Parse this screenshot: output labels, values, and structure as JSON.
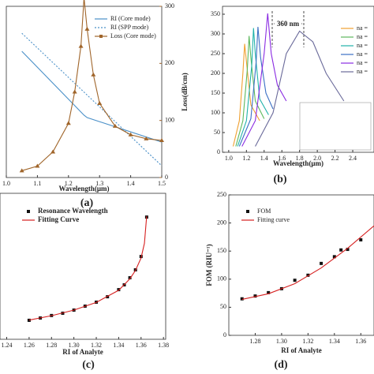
{
  "chart_data": [
    {
      "type": "line",
      "caption": "(a)",
      "xlabel": "Wavelength(μm)",
      "y2label": "Loss(dB/cm)",
      "xlim": [
        1.0,
        1.5
      ],
      "xticks": [
        {
          "value": 1.0,
          "label": "1.0"
        },
        1.1,
        1.2,
        1.3,
        1.4,
        {
          "value": 1.5,
          "label": "1.5"
        }
      ],
      "ylim": [
        1.4,
        1.47
      ],
      "y2lim": [
        0,
        300
      ],
      "y2ticks": [
        0,
        100,
        200,
        300
      ],
      "legend": "upper right",
      "series": [
        {
          "name": "RI (Core mode)",
          "color": "#4a90c8",
          "dash": false,
          "marker": null,
          "x": [
            1.05,
            1.25,
            1.26,
            1.5
          ],
          "values": [
            1.4516,
            1.4255,
            1.4245,
            1.4145
          ]
        },
        {
          "name": "RI (SPP mode)",
          "color": "#4a90c8",
          "dash": true,
          "marker": null,
          "x": [
            1.05,
            1.5
          ],
          "values": [
            1.459,
            1.4048
          ]
        },
        {
          "name": "Loss (Core mode)",
          "color": "#a0652a",
          "dash": false,
          "marker": "triangle",
          "axis": "y2",
          "x": [
            1.05,
            1.1,
            1.15,
            1.2,
            1.22,
            1.24,
            1.25,
            1.26,
            1.28,
            1.3,
            1.35,
            1.4,
            1.45,
            1.5
          ],
          "values": [
            12,
            20,
            45,
            95,
            150,
            230,
            315,
            260,
            180,
            130,
            90,
            75,
            68,
            65
          ]
        }
      ]
    },
    {
      "type": "line",
      "caption": "(b)",
      "xlabel": "Wavelength(μm)",
      "annotation": "360 nm",
      "xlim": [
        0.93,
        2.64
      ],
      "xticks": [
        {
          "value": 1.0,
          "label": "1.0"
        },
        1.2,
        1.4,
        1.6,
        1.8,
        {
          "value": 2.0,
          "label": "2.0"
        },
        2.2,
        2.4
      ],
      "ylim": [
        0,
        370
      ],
      "yticks": [
        0,
        50,
        100,
        150,
        200,
        250,
        300,
        350
      ],
      "legend": "right",
      "series": [
        {
          "name": "na =",
          "color": "#f0a030",
          "dash": false,
          "marker": null,
          "x": [
            1.05,
            1.12,
            1.16,
            1.18,
            1.2,
            1.25,
            1.35
          ],
          "values": [
            15,
            80,
            200,
            275,
            230,
            120,
            80
          ]
        },
        {
          "name": "na =",
          "color": "#5cb85c",
          "dash": false,
          "marker": null,
          "x": [
            1.08,
            1.16,
            1.21,
            1.23,
            1.25,
            1.3,
            1.4
          ],
          "values": [
            15,
            80,
            210,
            295,
            240,
            130,
            85
          ]
        },
        {
          "name": "na =",
          "color": "#20b2aa",
          "dash": false,
          "marker": null,
          "x": [
            1.1,
            1.2,
            1.26,
            1.28,
            1.3,
            1.35,
            1.45
          ],
          "values": [
            15,
            80,
            220,
            315,
            250,
            135,
            95
          ]
        },
        {
          "name": "na =",
          "color": "#3a6fc4",
          "dash": false,
          "marker": null,
          "x": [
            1.12,
            1.25,
            1.31,
            1.33,
            1.36,
            1.42,
            1.5
          ],
          "values": [
            15,
            85,
            230,
            318,
            240,
            150,
            110
          ]
        },
        {
          "name": "na =",
          "color": "#8a2be2",
          "dash": false,
          "marker": null,
          "x": [
            1.15,
            1.3,
            1.4,
            1.44,
            1.48,
            1.55,
            1.65
          ],
          "values": [
            15,
            80,
            250,
            352,
            250,
            170,
            130
          ]
        },
        {
          "name": "na =",
          "color": "#6a6a9a",
          "dash": false,
          "marker": null,
          "x": [
            1.3,
            1.5,
            1.65,
            1.8,
            1.95,
            2.1,
            2.3
          ],
          "values": [
            15,
            100,
            250,
            307,
            280,
            200,
            130
          ]
        }
      ]
    },
    {
      "type": "line",
      "caption": "(c)",
      "xlabel": "RI of Analyte",
      "xlim": [
        1.234,
        1.382
      ],
      "xticks": [
        1.24,
        1.26,
        1.28,
        {
          "value": 1.3,
          "label": "1.30"
        },
        1.32,
        1.34,
        1.36,
        1.38
      ],
      "ylim": [
        1.3,
        2.0
      ],
      "legend": "upper left",
      "series": [
        {
          "name": "Resonance Wavelength",
          "color": "#111111",
          "dash": false,
          "marker": "square",
          "line": false,
          "x": [
            1.26,
            1.27,
            1.28,
            1.29,
            1.3,
            1.31,
            1.32,
            1.33,
            1.34,
            1.345,
            1.35,
            1.355,
            1.36,
            1.365
          ],
          "values": [
            1.391,
            1.402,
            1.414,
            1.425,
            1.44,
            1.459,
            1.478,
            1.504,
            1.538,
            1.561,
            1.595,
            1.633,
            1.697,
            1.886
          ]
        },
        {
          "name": "Fitting Curve",
          "color": "#d62020",
          "dash": false,
          "marker": null,
          "x": [
            1.26,
            1.28,
            1.3,
            1.32,
            1.34,
            1.35,
            1.355,
            1.36,
            1.363,
            1.365
          ],
          "values": [
            1.392,
            1.413,
            1.44,
            1.477,
            1.535,
            1.59,
            1.63,
            1.69,
            1.76,
            1.89
          ]
        }
      ]
    },
    {
      "type": "line",
      "caption": "(d)",
      "xlabel": "RI of Analyte",
      "ylabel": "FOM (RIU⁻¹)",
      "xlim": [
        1.26,
        1.37
      ],
      "xticks": [
        1.28,
        {
          "value": 1.3,
          "label": "1.30"
        },
        1.32,
        1.34,
        1.36
      ],
      "ylim": [
        0,
        250
      ],
      "yticks": [
        0,
        50,
        100,
        150,
        200,
        250
      ],
      "legend": "upper left",
      "series": [
        {
          "name": "FOM",
          "color": "#111111",
          "dash": false,
          "marker": "square",
          "line": false,
          "x": [
            1.27,
            1.28,
            1.29,
            1.3,
            1.31,
            1.32,
            1.33,
            1.34,
            1.345,
            1.35,
            1.36
          ],
          "values": [
            65,
            70,
            76,
            83,
            98,
            107,
            128,
            140,
            152,
            153,
            170
          ]
        },
        {
          "name": "Fitting curve",
          "color": "#d62020",
          "dash": false,
          "marker": null,
          "x": [
            1.27,
            1.29,
            1.31,
            1.33,
            1.35,
            1.37
          ],
          "values": [
            64,
            74,
            92,
            120,
            155,
            195
          ]
        }
      ]
    }
  ]
}
